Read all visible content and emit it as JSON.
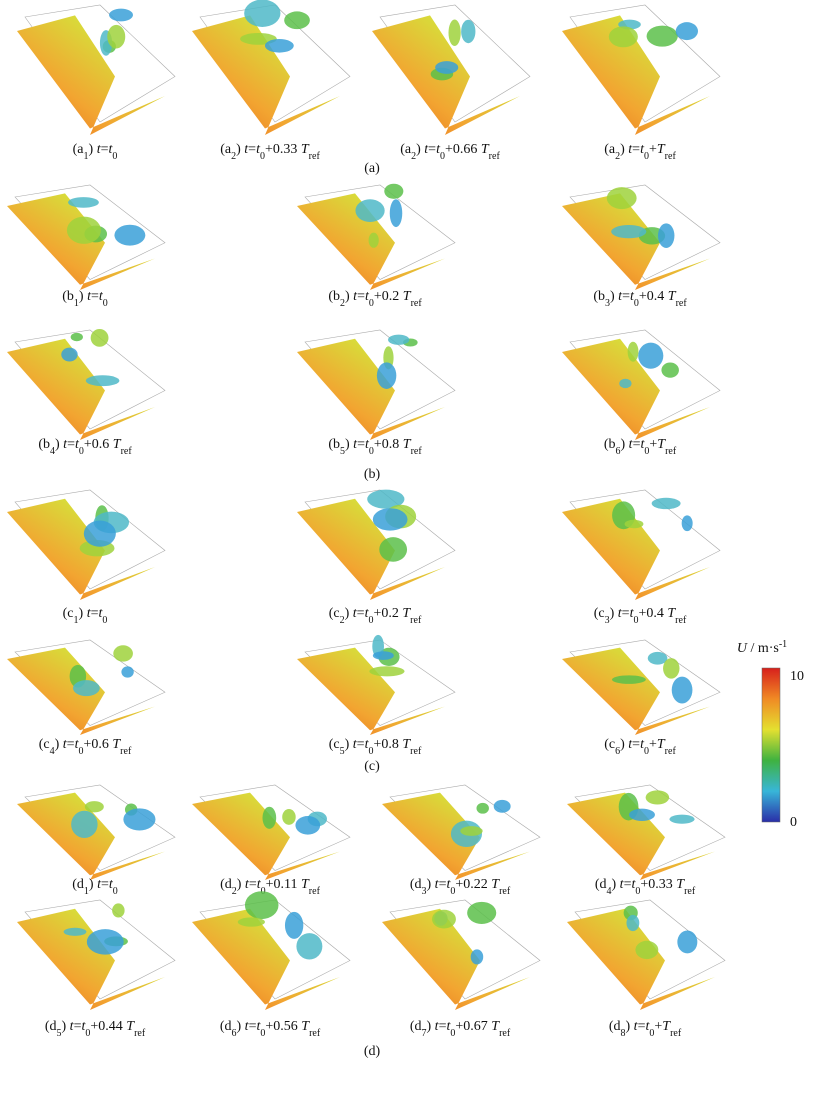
{
  "groups": [
    {
      "label": "(a)",
      "panels": [
        {
          "caption": [
            "(a",
            {
              "sub": "1"
            },
            ") ",
            {
              "i": "t"
            },
            "=",
            {
              "i": "t"
            },
            {
              "sub": "0"
            }
          ]
        },
        {
          "caption": [
            "(a",
            {
              "sub": "2"
            },
            ") ",
            {
              "i": "t"
            },
            "=",
            {
              "i": "t"
            },
            {
              "sub": "0"
            },
            "+0.33 ",
            {
              "i": "T"
            },
            {
              "sub": "ref"
            }
          ]
        },
        {
          "caption": [
            "(a",
            {
              "sub": "2"
            },
            ") ",
            {
              "i": "t"
            },
            "=",
            {
              "i": "t"
            },
            {
              "sub": "0"
            },
            "+0.66 ",
            {
              "i": "T"
            },
            {
              "sub": "ref"
            }
          ]
        },
        {
          "caption": [
            "(a",
            {
              "sub": "2"
            },
            ") ",
            {
              "i": "t"
            },
            "=",
            {
              "i": "t"
            },
            {
              "sub": "0"
            },
            "+",
            {
              "i": "T"
            },
            {
              "sub": "ref"
            }
          ]
        }
      ]
    },
    {
      "label": "(b)",
      "panels": [
        {
          "caption": [
            "(b",
            {
              "sub": "1"
            },
            ") ",
            {
              "i": "t"
            },
            "=",
            {
              "i": "t"
            },
            {
              "sub": "0"
            }
          ]
        },
        {
          "caption": [
            "(b",
            {
              "sub": "2"
            },
            ") ",
            {
              "i": "t"
            },
            "=",
            {
              "i": "t"
            },
            {
              "sub": "0"
            },
            "+0.2 ",
            {
              "i": "T"
            },
            {
              "sub": "ref"
            }
          ]
        },
        {
          "caption": [
            "(b",
            {
              "sub": "3"
            },
            ") ",
            {
              "i": "t"
            },
            "=",
            {
              "i": "t"
            },
            {
              "sub": "0"
            },
            "+0.4 ",
            {
              "i": "T"
            },
            {
              "sub": "ref"
            }
          ]
        },
        {
          "caption": [
            "(b",
            {
              "sub": "4"
            },
            ") ",
            {
              "i": "t"
            },
            "=",
            {
              "i": "t"
            },
            {
              "sub": "0"
            },
            "+0.6 ",
            {
              "i": "T"
            },
            {
              "sub": "ref"
            }
          ]
        },
        {
          "caption": [
            "(b",
            {
              "sub": "5"
            },
            ") ",
            {
              "i": "t"
            },
            "=",
            {
              "i": "t"
            },
            {
              "sub": "0"
            },
            "+0.8 ",
            {
              "i": "T"
            },
            {
              "sub": "ref"
            }
          ]
        },
        {
          "caption": [
            "(b",
            {
              "sub": "6"
            },
            ") ",
            {
              "i": "t"
            },
            "=",
            {
              "i": "t"
            },
            {
              "sub": "0"
            },
            "+",
            {
              "i": "T"
            },
            {
              "sub": "ref"
            }
          ]
        }
      ]
    },
    {
      "label": "(c)",
      "panels": [
        {
          "caption": [
            "(c",
            {
              "sub": "1"
            },
            ") ",
            {
              "i": "t"
            },
            "=",
            {
              "i": "t"
            },
            {
              "sub": "0"
            }
          ]
        },
        {
          "caption": [
            "(c",
            {
              "sub": "2"
            },
            ") ",
            {
              "i": "t"
            },
            "=",
            {
              "i": "t"
            },
            {
              "sub": "0"
            },
            "+0.2 ",
            {
              "i": "T"
            },
            {
              "sub": "ref"
            }
          ]
        },
        {
          "caption": [
            "(c",
            {
              "sub": "3"
            },
            ") ",
            {
              "i": "t"
            },
            "=",
            {
              "i": "t"
            },
            {
              "sub": "0"
            },
            "+0.4 ",
            {
              "i": "T"
            },
            {
              "sub": "ref"
            }
          ]
        },
        {
          "caption": [
            "(c",
            {
              "sub": "4"
            },
            ") ",
            {
              "i": "t"
            },
            "=",
            {
              "i": "t"
            },
            {
              "sub": "0"
            },
            "+0.6 ",
            {
              "i": "T"
            },
            {
              "sub": "ref"
            }
          ]
        },
        {
          "caption": [
            "(c",
            {
              "sub": "5"
            },
            ") ",
            {
              "i": "t"
            },
            "=",
            {
              "i": "t"
            },
            {
              "sub": "0"
            },
            "+0.8 ",
            {
              "i": "T"
            },
            {
              "sub": "ref"
            }
          ]
        },
        {
          "caption": [
            "(c",
            {
              "sub": "6"
            },
            ") ",
            {
              "i": "t"
            },
            "=",
            {
              "i": "t"
            },
            {
              "sub": "0"
            },
            "+",
            {
              "i": "T"
            },
            {
              "sub": "ref"
            }
          ]
        }
      ]
    },
    {
      "label": "(d)",
      "panels": [
        {
          "caption": [
            "(d",
            {
              "sub": "1"
            },
            ") ",
            {
              "i": "t"
            },
            "=",
            {
              "i": "t"
            },
            {
              "sub": "0"
            }
          ]
        },
        {
          "caption": [
            "(d",
            {
              "sub": "2"
            },
            ") ",
            {
              "i": "t"
            },
            "=",
            {
              "i": "t"
            },
            {
              "sub": "0"
            },
            "+0.11 ",
            {
              "i": "T"
            },
            {
              "sub": "ref"
            }
          ]
        },
        {
          "caption": [
            "(d",
            {
              "sub": "3"
            },
            ") ",
            {
              "i": "t"
            },
            "=",
            {
              "i": "t"
            },
            {
              "sub": "0"
            },
            "+0.22 ",
            {
              "i": "T"
            },
            {
              "sub": "ref"
            }
          ]
        },
        {
          "caption": [
            "(d",
            {
              "sub": "4"
            },
            ") ",
            {
              "i": "t"
            },
            "=",
            {
              "i": "t"
            },
            {
              "sub": "0"
            },
            "+0.33 ",
            {
              "i": "T"
            },
            {
              "sub": "ref"
            }
          ]
        },
        {
          "caption": [
            "(d",
            {
              "sub": "5"
            },
            ") ",
            {
              "i": "t"
            },
            "=",
            {
              "i": "t"
            },
            {
              "sub": "0"
            },
            "+0.44 ",
            {
              "i": "T"
            },
            {
              "sub": "ref"
            }
          ]
        },
        {
          "caption": [
            "(d",
            {
              "sub": "6"
            },
            ") ",
            {
              "i": "t"
            },
            "=",
            {
              "i": "t"
            },
            {
              "sub": "0"
            },
            "+0.56 ",
            {
              "i": "T"
            },
            {
              "sub": "ref"
            }
          ]
        },
        {
          "caption": [
            "(d",
            {
              "sub": "7"
            },
            ") ",
            {
              "i": "t"
            },
            "=",
            {
              "i": "t"
            },
            {
              "sub": "0"
            },
            "+0.67 ",
            {
              "i": "T"
            },
            {
              "sub": "ref"
            }
          ]
        },
        {
          "caption": [
            "(d",
            {
              "sub": "8"
            },
            ") ",
            {
              "i": "t"
            },
            "=",
            {
              "i": "t"
            },
            {
              "sub": "0"
            },
            "+",
            {
              "i": "T"
            },
            {
              "sub": "ref"
            }
          ]
        }
      ]
    }
  ],
  "colorbar": {
    "title": [
      {
        "i": "U"
      },
      " / m·s",
      {
        "sup": "-1"
      }
    ],
    "max_label": "10",
    "min_label": "0"
  }
}
